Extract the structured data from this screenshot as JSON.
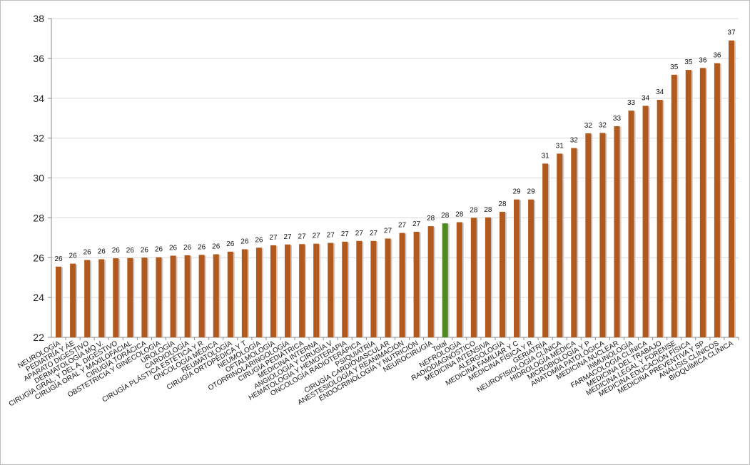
{
  "chart_data": {
    "type": "bar",
    "title": "",
    "xlabel": "",
    "ylabel": "",
    "ylim": [
      22,
      38
    ],
    "y_ticks": [
      "22",
      "24",
      "26",
      "28",
      "30",
      "32",
      "34",
      "36",
      "38"
    ],
    "grid": "horizontal",
    "colors": {
      "bar": "#b25a1e",
      "highlight": "#4e8a1f",
      "grid": "#d9d9d9"
    },
    "highlight_category": "Total",
    "categories": [
      "NEUROLOGÍA",
      "PEDIATRÍA Y ÁE",
      "APARATO DIGESTIVO",
      "DERMATOLOGÍA MQ V.",
      "CIRUGÍA GRAL. Y DEL A. DIGESTIVO",
      "CIRUGÍA ORAL Y MAXILOFACIAL",
      "CIRUGÍA TORÁCICA",
      "OBSTETRICIA Y GINECOLOGÍA",
      "UROLOGÍA",
      "CARDIOLOGÍA",
      "CIRUGÍA PLÁSTICA ESTÉTICA Y R",
      "ONCOLOGÍA MÉDICA",
      "REUMATOLOGÍA",
      "CIRUGÍA ORTOPÉDICA Y T",
      "NEUMOLOGÍA",
      "OFTALMOLOGÍA",
      "OTORRINOLARINGOLOGÍA",
      "CIRUGÍA PEDIÁTRICA",
      "MEDICINA INTERNA",
      "ANGIOLOGÍA Y CIRUGÍA V",
      "HEMATOLOGÍA Y HEMOTERAPIA",
      "ONCOLOGÍA RADIOTERÁPICA",
      "PSIQUIATRÍA",
      "CIRUGÍA CARDIOVASCULAR",
      "ANESTESIOLOGÍA Y REANIMACIÓN",
      "ENDOCRINOLOGÍA Y NUTRICIÓN",
      "NEUROCIRUGÍA",
      "Total",
      "NEFROLOGÍA",
      "RADIODIAGNÓSTICO",
      "MEDICINA INTENSIVA",
      "ALERGOLOGÍA",
      "MEDICINA FAMILIAR Y C",
      "MEDICINA FÍSICA Y R",
      "GERIATRÍA",
      "NEUROFISIOLOGÍA CLÍNICA",
      "HIDROLOGÍA MÉDICA",
      "MICROBIOLOGÍA Y P",
      "ANATOMÍA PATOLÓGICA",
      "MEDICINA NUCLEAR",
      "INMUNOLOGÍA",
      "FARMACOLOGÍA CLÍNICA",
      "MEDICINA DEL TRABAJO",
      "MEDICINA LEGAL Y FORENSE",
      "MEDICINA EDUCACIÓN FÍSICA",
      "MEDICINA PREVENTIVA Y SP",
      "ANÁLISIS CLÍNICOS",
      "BIOQUÍMICA CLÍNICA"
    ],
    "values": [
      25.55,
      25.7,
      25.88,
      25.92,
      25.97,
      25.98,
      26.0,
      26.02,
      26.1,
      26.12,
      26.14,
      26.17,
      26.3,
      26.42,
      26.5,
      26.62,
      26.66,
      26.68,
      26.7,
      26.74,
      26.8,
      26.84,
      26.84,
      26.96,
      27.24,
      27.3,
      27.58,
      27.72,
      27.78,
      28.0,
      28.02,
      28.3,
      28.92,
      28.92,
      30.72,
      31.22,
      31.5,
      32.24,
      32.26,
      32.6,
      33.38,
      33.62,
      33.92,
      35.18,
      35.42,
      35.52,
      35.76,
      36.9
    ],
    "data_labels": [
      "26",
      "26",
      "26",
      "26",
      "26",
      "26",
      "26",
      "26",
      "26",
      "26",
      "26",
      "26",
      "26",
      "26",
      "26",
      "27",
      "27",
      "27",
      "27",
      "27",
      "27",
      "27",
      "27",
      "27",
      "27",
      "27",
      "28",
      "28",
      "28",
      "28",
      "28",
      "28",
      "29",
      "29",
      "31",
      "31",
      "32",
      "32",
      "32",
      "33",
      "33",
      "34",
      "34",
      "35",
      "35",
      "36",
      "36",
      "37"
    ]
  }
}
